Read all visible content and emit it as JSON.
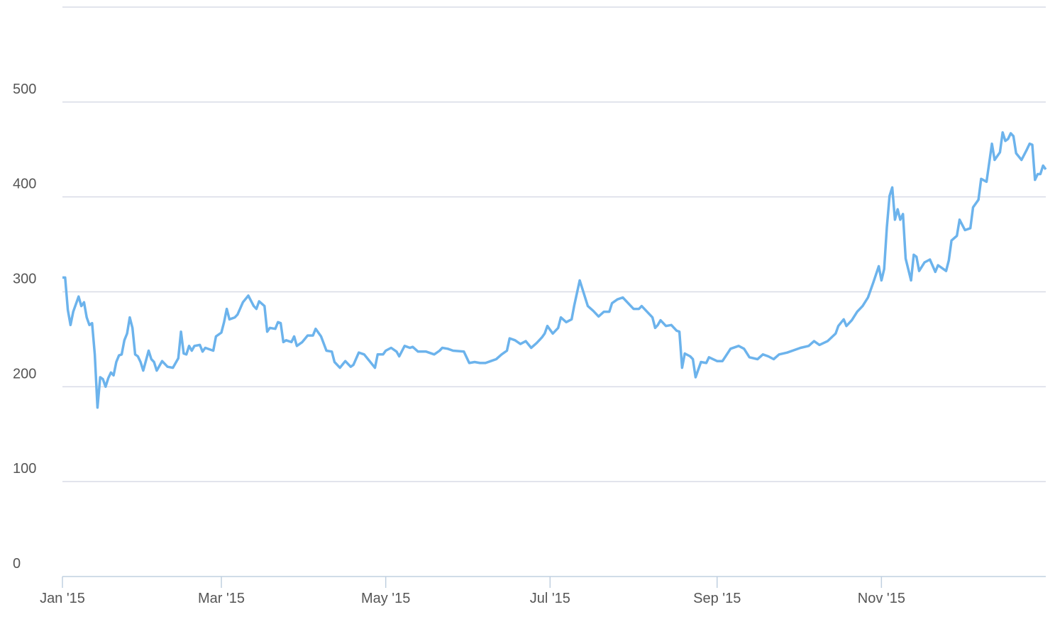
{
  "chart_data": {
    "type": "line",
    "x": [
      0,
      1,
      2,
      3,
      4,
      6,
      7,
      8,
      9,
      10,
      11,
      12,
      13,
      14,
      15,
      16,
      17,
      18,
      19,
      20,
      21,
      22,
      23,
      24,
      25,
      26,
      27,
      28,
      29,
      30,
      32,
      33,
      34,
      35,
      37,
      39,
      41,
      43,
      44,
      45,
      46,
      47,
      48,
      49,
      51,
      52,
      53,
      56,
      57,
      59,
      60,
      61,
      62,
      64,
      65,
      67,
      69,
      71,
      72,
      73,
      75,
      76,
      77,
      79,
      80,
      81,
      82,
      83,
      85,
      86,
      87,
      89,
      91,
      93,
      94,
      96,
      98,
      100,
      101,
      103,
      105,
      107,
      108,
      110,
      112,
      114,
      116,
      117,
      119,
      120,
      122,
      124,
      125,
      127,
      129,
      130,
      132,
      135,
      138,
      140,
      141,
      143,
      145,
      149,
      151,
      153,
      155,
      157,
      159,
      161,
      163,
      165,
      166,
      168,
      170,
      172,
      174,
      176,
      178,
      179,
      180,
      182,
      184,
      185,
      187,
      189,
      190,
      192,
      194,
      195,
      197,
      199,
      201,
      203,
      204,
      206,
      208,
      210,
      212,
      214,
      215,
      217,
      219,
      220,
      221,
      222,
      224,
      226,
      228,
      229,
      230,
      231,
      233,
      234,
      235,
      237,
      239,
      240,
      243,
      245,
      248,
      251,
      253,
      255,
      258,
      260,
      262,
      264,
      266,
      269,
      271,
      274,
      277,
      279,
      281,
      284,
      287,
      288,
      290,
      291,
      293,
      295,
      297,
      299,
      301,
      303,
      304,
      305,
      306,
      307,
      308,
      309,
      310,
      311,
      312,
      313,
      315,
      316,
      317,
      318,
      320,
      322,
      324,
      325,
      328,
      329,
      330,
      332,
      333,
      335,
      337,
      338,
      340,
      341,
      343,
      345,
      346,
      348,
      349,
      350,
      351,
      352,
      353,
      354,
      356,
      358,
      359,
      360,
      361,
      362,
      363,
      364,
      365
    ],
    "series": [
      {
        "color": "#6cb3ec",
        "values": [
          315,
          315,
          281,
          265,
          279,
          295,
          285,
          289,
          273,
          265,
          267,
          234,
          178,
          210,
          208,
          200,
          209,
          215,
          212,
          226,
          233,
          234,
          249,
          256,
          273,
          262,
          234,
          232,
          226,
          217,
          238,
          229,
          226,
          217,
          227,
          221,
          220,
          230,
          258,
          235,
          234,
          243,
          238,
          243,
          244,
          237,
          241,
          238,
          253,
          257,
          268,
          282,
          271,
          273,
          276,
          289,
          296,
          285,
          282,
          290,
          285,
          258,
          262,
          261,
          268,
          267,
          247,
          249,
          247,
          253,
          243,
          247,
          254,
          254,
          261,
          253,
          238,
          237,
          226,
          220,
          227,
          221,
          223,
          236,
          234,
          227,
          220,
          234,
          234,
          238,
          241,
          237,
          232,
          243,
          241,
          242,
          237,
          237,
          234,
          238,
          241,
          240,
          238,
          237,
          225,
          226,
          225,
          225,
          227,
          229,
          234,
          238,
          251,
          249,
          245,
          248,
          241,
          246,
          252,
          256,
          264,
          256,
          262,
          273,
          268,
          271,
          286,
          312,
          294,
          285,
          280,
          274,
          279,
          279,
          288,
          292,
          294,
          288,
          282,
          282,
          285,
          279,
          273,
          262,
          265,
          270,
          264,
          265,
          259,
          258,
          220,
          235,
          232,
          229,
          210,
          226,
          225,
          231,
          227,
          227,
          240,
          243,
          240,
          231,
          229,
          234,
          232,
          229,
          234,
          236,
          238,
          241,
          243,
          248,
          244,
          248,
          256,
          264,
          271,
          264,
          270,
          279,
          285,
          294,
          310,
          327,
          312,
          324,
          368,
          401,
          410,
          376,
          387,
          376,
          382,
          335,
          312,
          339,
          337,
          322,
          331,
          334,
          321,
          328,
          322,
          333,
          354,
          359,
          376,
          365,
          367,
          389,
          397,
          419,
          416,
          456,
          439,
          447,
          468,
          459,
          461,
          467,
          464,
          446,
          439,
          450,
          456,
          455,
          418,
          424,
          424,
          433,
          429
        ]
      }
    ],
    "xlim": [
      0,
      365
    ],
    "xticks": [
      {
        "value": 0,
        "label": "Jan '15"
      },
      {
        "value": 59,
        "label": "Mar '15"
      },
      {
        "value": 120,
        "label": "May '15"
      },
      {
        "value": 181,
        "label": "Jul '15"
      },
      {
        "value": 243,
        "label": "Sep '15"
      },
      {
        "value": 304,
        "label": "Nov '15"
      }
    ],
    "ylim": [
      0,
      600
    ],
    "yticks": [
      0,
      100,
      200,
      300,
      400,
      500
    ],
    "grid": true
  }
}
